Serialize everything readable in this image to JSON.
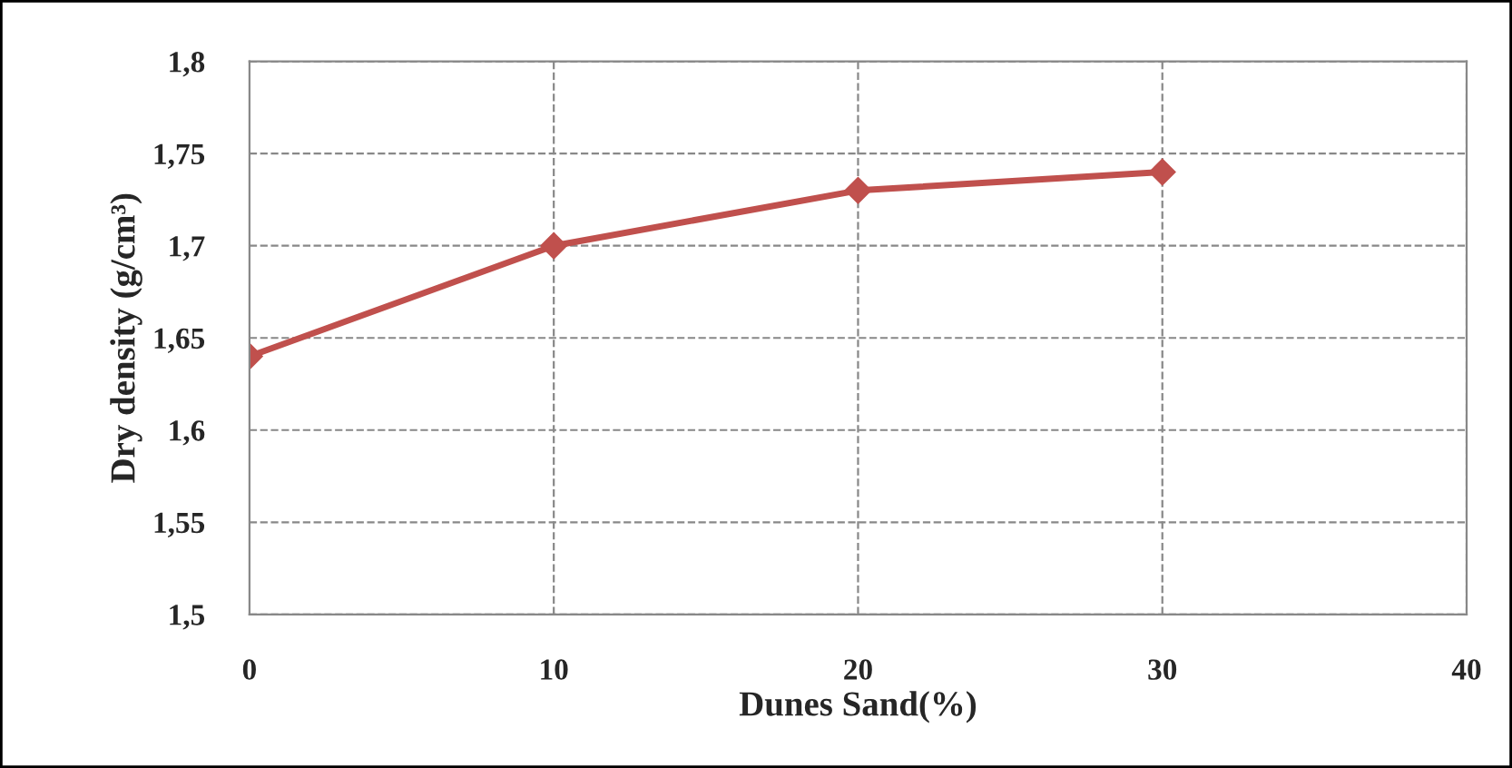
{
  "chart_data": {
    "type": "line",
    "xlabel": "Dunes Sand(%)",
    "ylabel": "Dry density (g/cm³)",
    "x": [
      0,
      10,
      20,
      30
    ],
    "series": [
      {
        "color": "#c0504d",
        "values": [
          1.64,
          1.7,
          1.73,
          1.74
        ]
      }
    ],
    "xlim": [
      0,
      40
    ],
    "xticks": [
      0,
      10,
      20,
      30,
      40
    ],
    "ylim": [
      1.5,
      1.8
    ],
    "yticks": [
      {
        "value": 1.5,
        "label": "1,5"
      },
      {
        "value": 1.55,
        "label": "1,55"
      },
      {
        "value": 1.6,
        "label": "1,6"
      },
      {
        "value": 1.65,
        "label": "1,65"
      },
      {
        "value": 1.7,
        "label": "1,7"
      },
      {
        "value": 1.75,
        "label": "1,75"
      },
      {
        "value": 1.8,
        "label": "1,8"
      }
    ],
    "grid": true,
    "marker": "diamond",
    "line_style": "solid",
    "legend": false
  }
}
